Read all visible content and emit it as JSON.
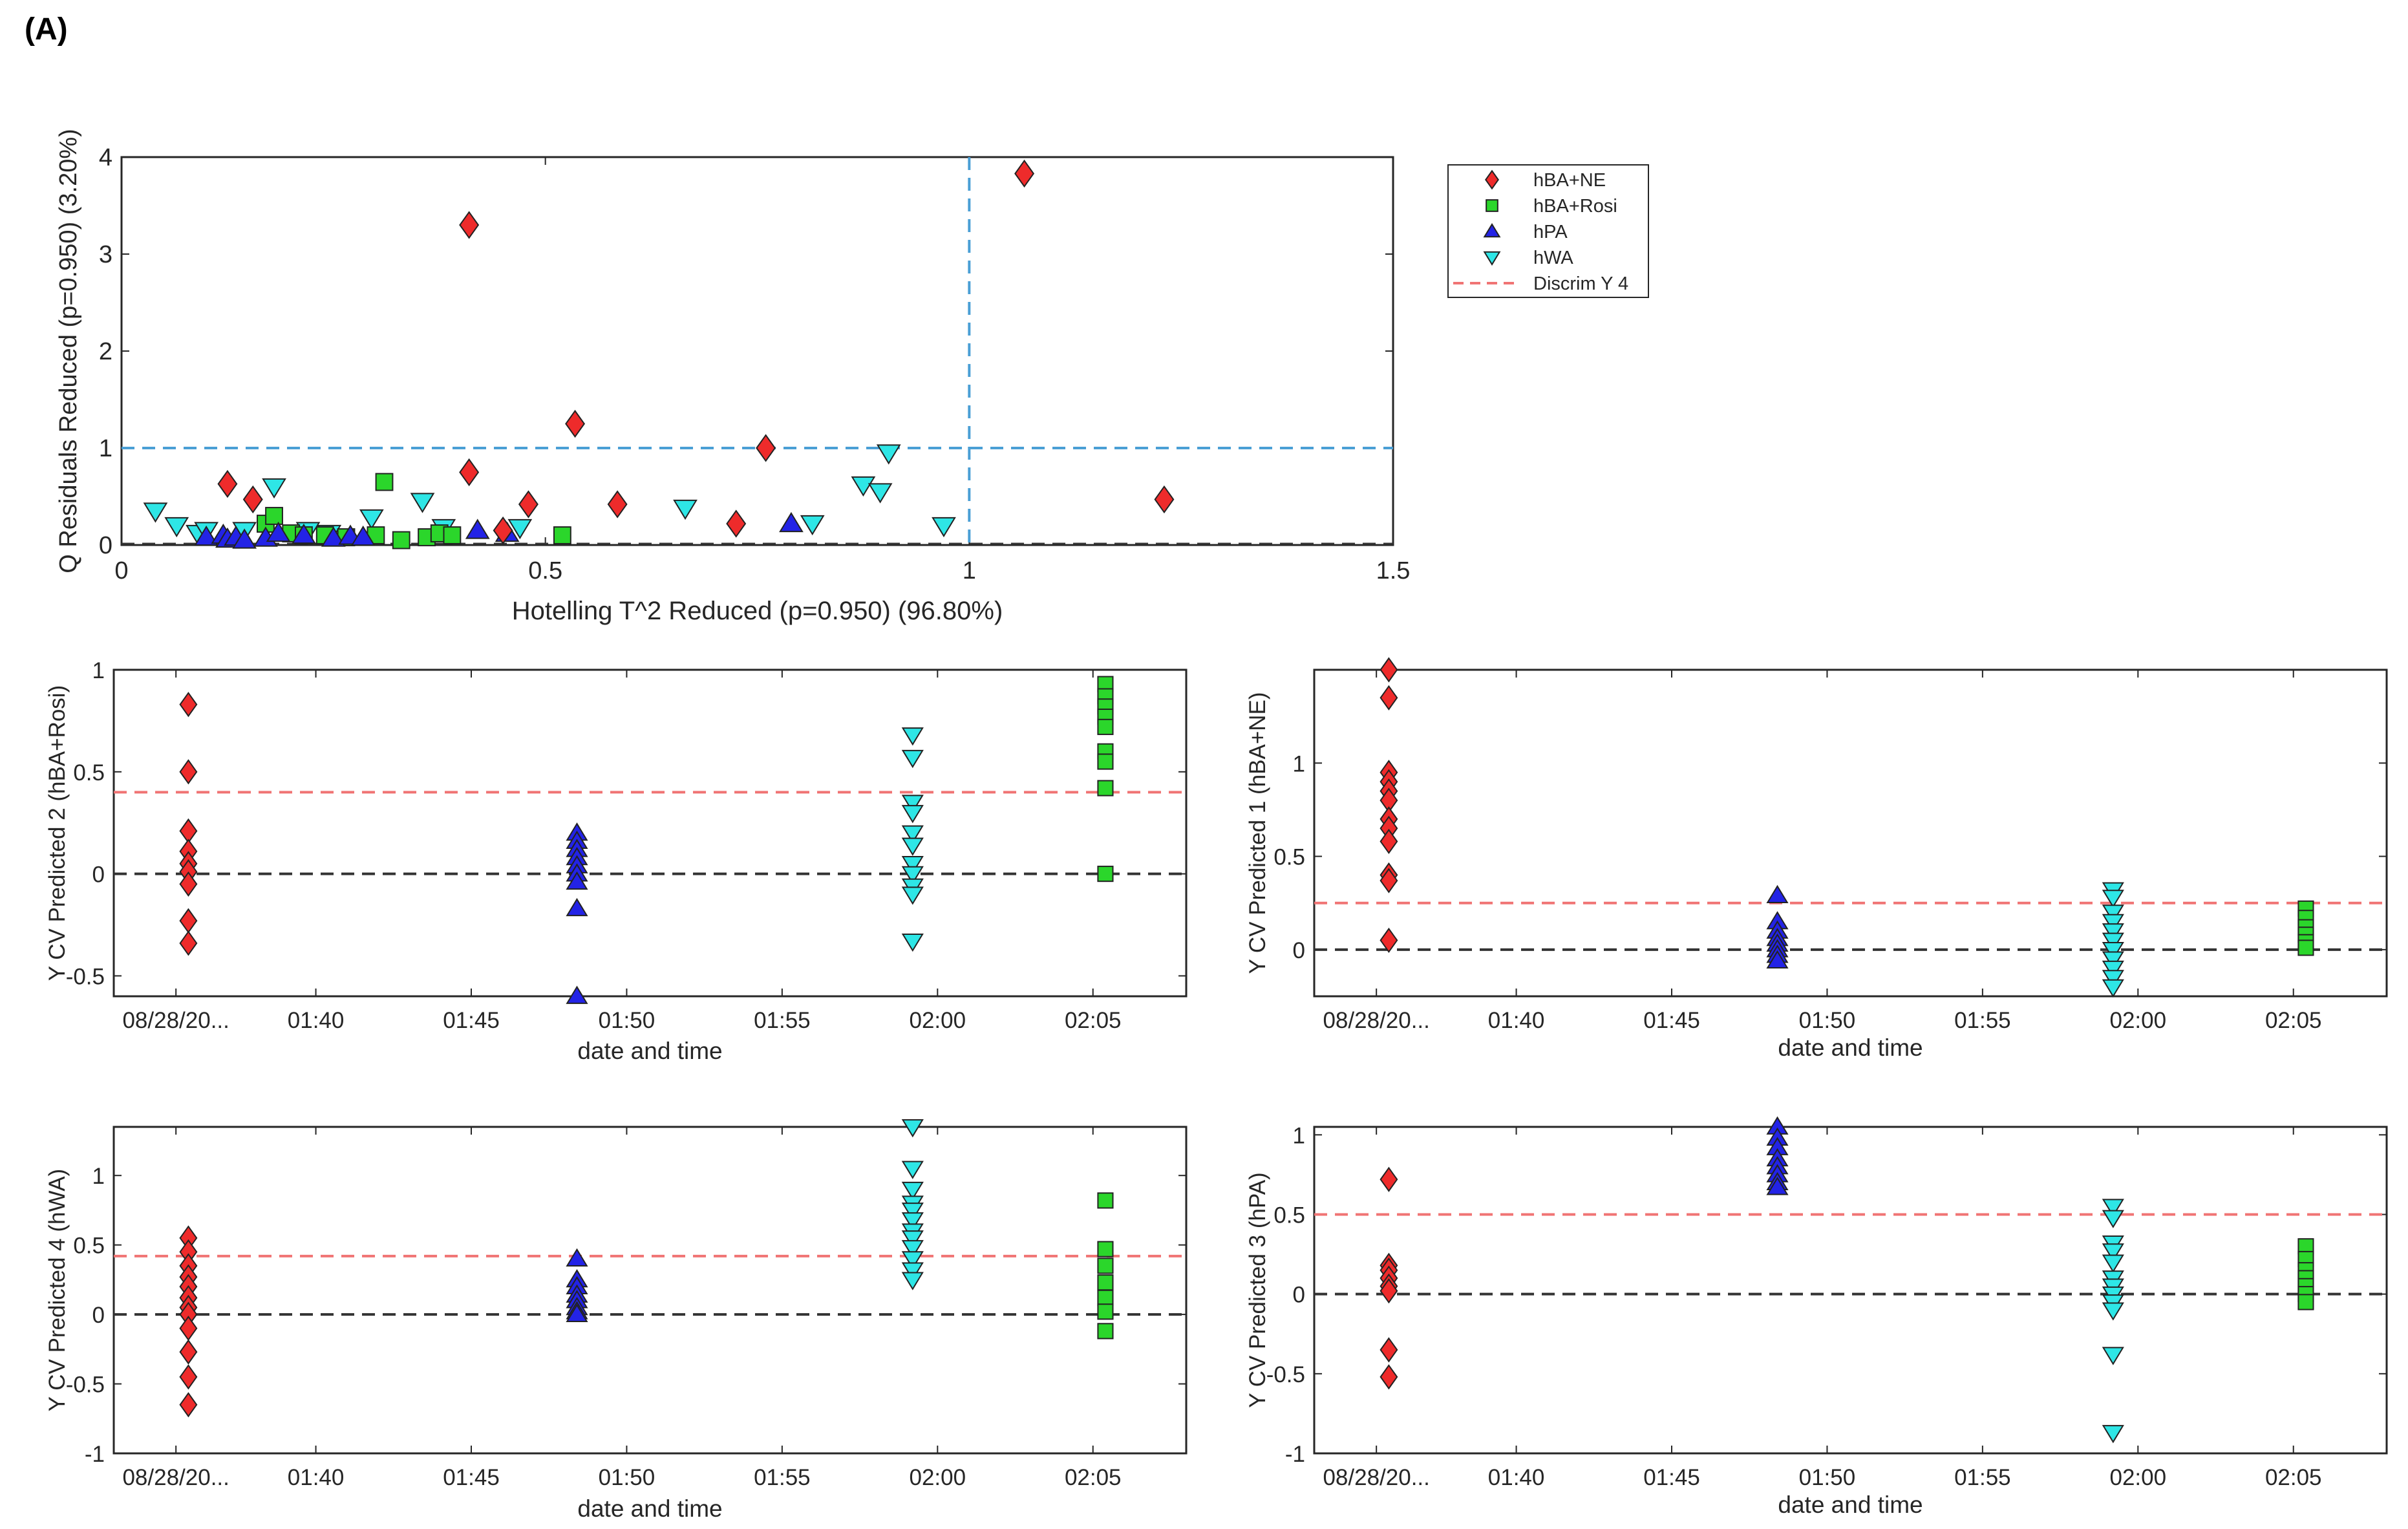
{
  "panel_label": "(A)",
  "colors": {
    "hBA+NE": "#ee2b2b",
    "hBA+Rosi": "#2bd62b",
    "hPA": "#2323e6",
    "hWA": "#2ee6e6",
    "discrim": "#f07474",
    "limit": "#4a9fd5",
    "zero": "#333333"
  },
  "legend": [
    {
      "label": "hBA+NE",
      "marker": "diamond",
      "color": "#ee2b2b"
    },
    {
      "label": "hBA+Rosi",
      "marker": "square",
      "color": "#2bd62b"
    },
    {
      "label": "hPA",
      "marker": "triangle-up",
      "color": "#2323e6"
    },
    {
      "label": "hWA",
      "marker": "triangle-down",
      "color": "#2ee6e6"
    },
    {
      "label": "Discrim Y 4",
      "marker": "dashed-line",
      "color": "#f07474"
    }
  ],
  "chart_data": [
    {
      "id": "main",
      "type": "scatter",
      "xlabel": "Hotelling T^2 Reduced (p=0.950) (96.80%)",
      "ylabel": "Q Residuals Reduced (p=0.950) (3.20%)",
      "xlim": [
        0,
        1.5
      ],
      "ylim": [
        0,
        4
      ],
      "xticks": [
        0,
        0.5,
        1,
        1.5
      ],
      "xticklabels": [
        "0",
        "0.5",
        "1",
        "1.5"
      ],
      "yticks": [
        0,
        1,
        2,
        3,
        4
      ],
      "yticklabels": [
        "0",
        "1",
        "2",
        "3",
        "4"
      ],
      "vline": 1,
      "hline": 1,
      "series": [
        {
          "name": "hBA+NE",
          "marker": "diamond",
          "points": [
            [
              0.125,
              0.63
            ],
            [
              0.155,
              0.47
            ],
            [
              0.41,
              3.3
            ],
            [
              0.41,
              0.75
            ],
            [
              0.45,
              0.15
            ],
            [
              0.48,
              0.42
            ],
            [
              0.535,
              1.25
            ],
            [
              0.585,
              0.42
            ],
            [
              0.725,
              0.22
            ],
            [
              0.76,
              1.0
            ],
            [
              1.065,
              3.83
            ],
            [
              1.23,
              0.47
            ]
          ]
        },
        {
          "name": "hBA+Rosi",
          "marker": "square",
          "points": [
            [
              0.17,
              0.22
            ],
            [
              0.18,
              0.3
            ],
            [
              0.2,
              0.12
            ],
            [
              0.215,
              0.1
            ],
            [
              0.24,
              0.1
            ],
            [
              0.265,
              0.08
            ],
            [
              0.3,
              0.1
            ],
            [
              0.31,
              0.65
            ],
            [
              0.33,
              0.05
            ],
            [
              0.36,
              0.08
            ],
            [
              0.375,
              0.12
            ],
            [
              0.39,
              0.1
            ],
            [
              0.52,
              0.1
            ]
          ]
        },
        {
          "name": "hPA",
          "marker": "triangle-up",
          "points": [
            [
              0.1,
              0.08
            ],
            [
              0.12,
              0.1
            ],
            [
              0.125,
              0.06
            ],
            [
              0.135,
              0.08
            ],
            [
              0.145,
              0.05
            ],
            [
              0.17,
              0.07
            ],
            [
              0.185,
              0.12
            ],
            [
              0.215,
              0.1
            ],
            [
              0.25,
              0.07
            ],
            [
              0.27,
              0.09
            ],
            [
              0.285,
              0.08
            ],
            [
              0.42,
              0.15
            ],
            [
              0.455,
              0.12
            ],
            [
              0.79,
              0.22
            ]
          ]
        },
        {
          "name": "hWA",
          "marker": "triangle-down",
          "points": [
            [
              0.04,
              0.35
            ],
            [
              0.065,
              0.2
            ],
            [
              0.09,
              0.12
            ],
            [
              0.1,
              0.15
            ],
            [
              0.145,
              0.15
            ],
            [
              0.18,
              0.6
            ],
            [
              0.22,
              0.15
            ],
            [
              0.245,
              0.12
            ],
            [
              0.295,
              0.28
            ],
            [
              0.355,
              0.45
            ],
            [
              0.38,
              0.18
            ],
            [
              0.47,
              0.18
            ],
            [
              0.665,
              0.38
            ],
            [
              0.815,
              0.22
            ],
            [
              0.875,
              0.62
            ],
            [
              0.895,
              0.55
            ],
            [
              0.905,
              0.95
            ],
            [
              0.97,
              0.2
            ]
          ]
        }
      ]
    },
    {
      "id": "y2",
      "type": "scatter",
      "xlabel": "date and time",
      "ylabel": "Y CV Predicted 2 (hBA+Rosi)",
      "xticklabels": [
        "08/28/20...",
        "01:40",
        "01:45",
        "01:50",
        "01:55",
        "02:00",
        "02:05"
      ],
      "xlim": [
        93.5,
        128.0
      ],
      "xticks": [
        95.5,
        100,
        105,
        110,
        115,
        120,
        125
      ],
      "ylim": [
        -0.6,
        1
      ],
      "yticks": [
        -0.5,
        0,
        0.5,
        1
      ],
      "yticklabels": [
        "-0.5",
        "0",
        "0.5",
        "1"
      ],
      "discrim": 0.4,
      "series": [
        {
          "name": "hBA+NE",
          "marker": "diamond",
          "x": 95.9,
          "values": [
            0.83,
            0.5,
            0.21,
            0.11,
            0.05,
            0.01,
            -0.05,
            -0.23,
            -0.34
          ]
        },
        {
          "name": "hPA",
          "marker": "triangle-up",
          "x": 108.4,
          "values": [
            0.2,
            0.16,
            0.12,
            0.08,
            0.04,
            0.0,
            -0.04,
            -0.17,
            -0.6
          ]
        },
        {
          "name": "hWA",
          "marker": "triangle-down",
          "x": 119.2,
          "values": [
            0.68,
            0.57,
            0.35,
            0.3,
            0.2,
            0.14,
            0.05,
            0.0,
            -0.06,
            -0.1,
            -0.33
          ]
        },
        {
          "name": "hBA+Rosi",
          "marker": "square",
          "x": 125.4,
          "values": [
            0.93,
            0.87,
            0.82,
            0.77,
            0.72,
            0.6,
            0.55,
            0.42,
            0.0
          ]
        }
      ]
    },
    {
      "id": "y1",
      "type": "scatter",
      "xlabel": "date and time",
      "ylabel": "Y CV Predicted 1 (hBA+NE)",
      "xticklabels": [
        "08/28/20...",
        "01:40",
        "01:45",
        "01:50",
        "01:55",
        "02:00",
        "02:05"
      ],
      "xlim": [
        93.5,
        128.0
      ],
      "xticks": [
        95.5,
        100,
        105,
        110,
        115,
        120,
        125
      ],
      "ylim": [
        -0.25,
        1.5
      ],
      "yticks": [
        0,
        0.5,
        1
      ],
      "yticklabels": [
        "0",
        "0.5",
        "1"
      ],
      "discrim": 0.25,
      "series": [
        {
          "name": "hBA+NE",
          "marker": "diamond",
          "x": 95.9,
          "values": [
            1.5,
            1.35,
            0.95,
            0.9,
            0.85,
            0.8,
            0.7,
            0.65,
            0.58,
            0.4,
            0.37,
            0.05
          ]
        },
        {
          "name": "hPA",
          "marker": "triangle-up",
          "x": 108.4,
          "values": [
            0.29,
            0.15,
            0.1,
            0.06,
            0.03,
            0.0,
            -0.03,
            -0.06
          ]
        },
        {
          "name": "hWA",
          "marker": "triangle-down",
          "x": 119.2,
          "values": [
            0.32,
            0.28,
            0.2,
            0.15,
            0.1,
            0.05,
            0.0,
            -0.05,
            -0.1,
            -0.15,
            -0.2
          ]
        },
        {
          "name": "hBA+Rosi",
          "marker": "square",
          "x": 125.4,
          "values": [
            0.22,
            0.17,
            0.12,
            0.08,
            0.04,
            0.01
          ]
        }
      ]
    },
    {
      "id": "y4",
      "type": "scatter",
      "xlabel": "date and time",
      "ylabel": "Y CV Predicted 4 (hWA)",
      "xticklabels": [
        "08/28/20...",
        "01:40",
        "01:45",
        "01:50",
        "01:55",
        "02:00",
        "02:05"
      ],
      "xlim": [
        93.5,
        128.0
      ],
      "xticks": [
        95.5,
        100,
        105,
        110,
        115,
        120,
        125
      ],
      "ylim": [
        -1,
        1.35
      ],
      "yticks": [
        -1,
        -0.5,
        0,
        0.5,
        1
      ],
      "yticklabels": [
        "-1",
        "-0.5",
        "0",
        "0.5",
        "1"
      ],
      "discrim": 0.42,
      "series": [
        {
          "name": "hBA+NE",
          "marker": "diamond",
          "x": 95.9,
          "values": [
            0.55,
            0.45,
            0.35,
            0.27,
            0.2,
            0.12,
            0.05,
            0.0,
            -0.1,
            -0.27,
            -0.45,
            -0.65
          ]
        },
        {
          "name": "hPA",
          "marker": "triangle-up",
          "x": 108.4,
          "values": [
            0.4,
            0.25,
            0.2,
            0.14,
            0.1,
            0.05,
            0.02,
            0.0
          ]
        },
        {
          "name": "hWA",
          "marker": "triangle-down",
          "x": 119.2,
          "values": [
            1.35,
            1.05,
            0.9,
            0.8,
            0.75,
            0.68,
            0.6,
            0.55,
            0.48,
            0.4,
            0.32,
            0.25
          ]
        },
        {
          "name": "hBA+Rosi",
          "marker": "square",
          "x": 125.4,
          "values": [
            0.82,
            0.47,
            0.35,
            0.23,
            0.12,
            0.02,
            -0.12
          ]
        }
      ]
    },
    {
      "id": "y3",
      "type": "scatter",
      "xlabel": "date and time",
      "ylabel": "Y CV Predicted 3 (hPA)",
      "xticklabels": [
        "08/28/20...",
        "01:40",
        "01:45",
        "01:50",
        "01:55",
        "02:00",
        "02:05"
      ],
      "xlim": [
        93.5,
        128.0
      ],
      "xticks": [
        95.5,
        100,
        105,
        110,
        115,
        120,
        125
      ],
      "ylim": [
        -1,
        1.05
      ],
      "yticks": [
        -1,
        -0.5,
        0,
        0.5,
        1
      ],
      "yticklabels": [
        "-1",
        "-0.5",
        "0",
        "0.5",
        "1"
      ],
      "discrim": 0.5,
      "series": [
        {
          "name": "hBA+NE",
          "marker": "diamond",
          "x": 95.9,
          "values": [
            0.72,
            0.18,
            0.15,
            0.1,
            0.05,
            0.02,
            -0.35,
            -0.52
          ]
        },
        {
          "name": "hPA",
          "marker": "triangle-up",
          "x": 108.4,
          "values": [
            1.05,
            0.98,
            0.92,
            0.85,
            0.8,
            0.75,
            0.7,
            0.67
          ]
        },
        {
          "name": "hWA",
          "marker": "triangle-down",
          "x": 119.2,
          "values": [
            0.55,
            0.48,
            0.32,
            0.27,
            0.2,
            0.1,
            0.05,
            0.0,
            -0.05,
            -0.1,
            -0.38,
            -0.87
          ]
        },
        {
          "name": "hBA+Rosi",
          "marker": "square",
          "x": 125.4,
          "values": [
            0.3,
            0.22,
            0.15,
            0.1,
            0.05,
            0.0,
            -0.05
          ]
        }
      ]
    }
  ]
}
